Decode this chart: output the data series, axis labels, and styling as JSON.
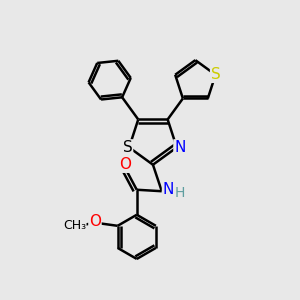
{
  "bg_color": "#e8e8e8",
  "atom_colors": {
    "S_thiophene": "#cccc00",
    "S_thiazole": "#000000",
    "N": "#0000ff",
    "O": "#ff0000",
    "C": "#000000",
    "H": "#5f9ea0"
  },
  "bond_lw": 1.8,
  "font_size": 11,
  "fig_size": [
    3.0,
    3.0
  ],
  "dpi": 100,
  "xlim": [
    0,
    10
  ],
  "ylim": [
    0,
    10
  ]
}
